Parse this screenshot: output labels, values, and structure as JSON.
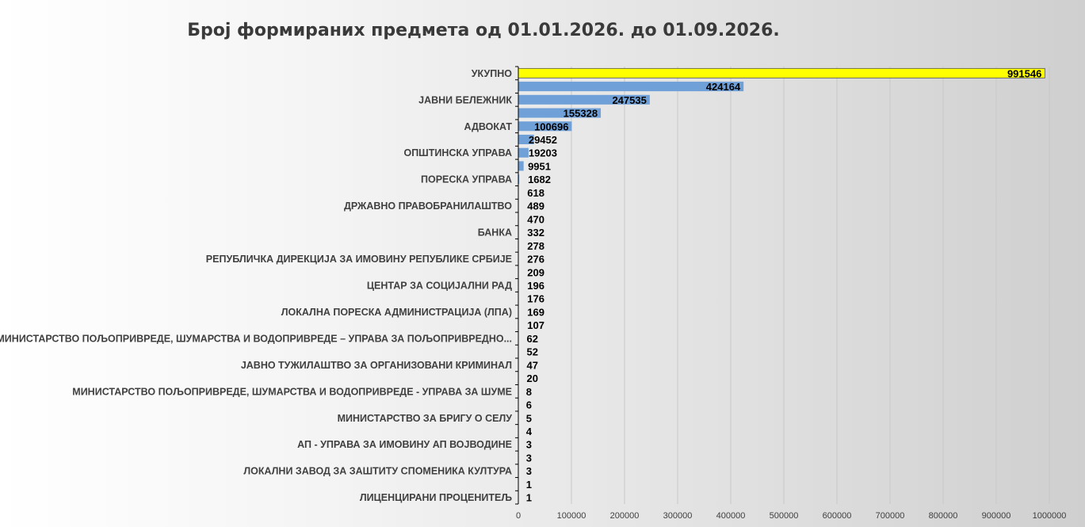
{
  "chart_data": {
    "type": "bar",
    "orientation": "horizontal",
    "title": "Број формираних предмета од 01.01.2026. до 01.09.2026.",
    "xlim": [
      0,
      1000000
    ],
    "x_ticks": [
      "0",
      "100000",
      "200000",
      "300000",
      "400000",
      "500000",
      "600000",
      "700000",
      "800000",
      "900000",
      "1000000"
    ],
    "grid": true,
    "categories": [
      "УКУПНО",
      "",
      "ЈАВНИ БЕЛЕЖНИК",
      "",
      "АДВОКАТ",
      "",
      "ОПШТИНСКА УПРАВА",
      "",
      "ПОРЕСКА УПРАВА",
      "",
      "ДРЖАВНО ПРАВОБРАНИЛАШТВО",
      "",
      "БАНКА",
      "",
      "РЕПУБЛИЧКА ДИРЕКЦИЈА ЗА ИМОВИНУ РЕПУБЛИКЕ СРБИЈЕ",
      "",
      "ЦЕНТАР ЗА СОЦИЈАЛНИ РАД",
      "",
      "ЛОКАЛНА ПОРЕСКА АДМИНИСТРАЦИЈА  (ЛПА)",
      "",
      "МИНИСТАРСТВО  ПОЉОПРИВРЕДЕ, ШУМАРСТВА  И ВОДОПРИВРЕДЕ  – УПРАВА ЗА ПОЉОПРИВРЕДНО...",
      "",
      "ЈАВНО ТУЖИЛАШТВО ЗА ОРГАНИЗОВАНИ  КРИМИНАЛ",
      "",
      "МИНИСТАРСТВО  ПОЉОПРИВРЕДЕ, ШУМАРСТВА И ВОДОПРИВРЕДЕ  - УПРАВА ЗА ШУМЕ",
      "",
      "МИНИСТАРСТВО  ЗА БРИГУ О СЕЛУ",
      "",
      "АП - УПРАВА ЗА ИМОВИНУ АП ВОЈВОДИНЕ",
      "",
      "ЛОКАЛНИ ЗАВОД ЗА ЗАШТИТУ СПОМЕНИКА КУЛТУРА",
      "",
      "ЛИЦЕНЦИРАНИ ПРОЦЕНИТЕЉ"
    ],
    "values": [
      991546,
      424164,
      247535,
      155328,
      100696,
      29452,
      19203,
      9951,
      1682,
      618,
      489,
      470,
      332,
      278,
      276,
      209,
      196,
      176,
      169,
      107,
      62,
      52,
      47,
      20,
      8,
      6,
      5,
      4,
      3,
      3,
      3,
      1,
      1
    ],
    "value_labels": [
      "991546",
      "424164",
      "247535",
      "155328",
      "100696",
      "29452",
      "19203",
      "9951",
      "1682",
      "618",
      "489",
      "470",
      "332",
      "278",
      "276",
      "209",
      "196",
      "176",
      "169",
      "107",
      "62",
      "52",
      "47",
      "20",
      "8",
      "6",
      "5",
      "4",
      "3",
      "3",
      "3",
      "1",
      "1"
    ],
    "colors": {
      "highlight": "#FFFF00",
      "bar": "#6FA0D8",
      "grid": "#C8C8C8",
      "axis": "#000000"
    },
    "highlight_index": 0
  }
}
